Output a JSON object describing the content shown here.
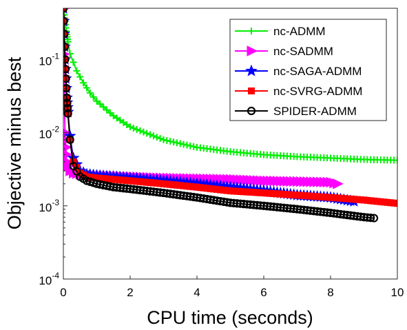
{
  "chart_data": {
    "type": "line",
    "title": "",
    "xlabel": "CPU time (seconds)",
    "ylabel": "Objective minus best",
    "xlim": [
      0,
      10
    ],
    "ylim_log10": [
      -4,
      -0.3
    ],
    "yscale": "log",
    "grid": false,
    "legend_position": "top-right",
    "x_ticks": [
      {
        "value": 0,
        "label": "0"
      },
      {
        "value": 2,
        "label": "2"
      },
      {
        "value": 4,
        "label": "4"
      },
      {
        "value": 6,
        "label": "6"
      },
      {
        "value": 8,
        "label": "8"
      },
      {
        "value": 10,
        "label": "10"
      }
    ],
    "y_ticks": [
      {
        "value": 0.0001,
        "base": "10",
        "exp": "-4"
      },
      {
        "value": 0.001,
        "base": "10",
        "exp": "-3"
      },
      {
        "value": 0.01,
        "base": "10",
        "exp": "-2"
      },
      {
        "value": 0.1,
        "base": "10",
        "exp": "-1"
      }
    ],
    "series": [
      {
        "name": "nc-ADMM",
        "color": "#00ee00",
        "marker": "plus",
        "x": [
          0.0,
          0.1,
          0.2,
          0.4,
          0.6,
          0.8,
          1.0,
          1.5,
          2.0,
          3.0,
          4.0,
          5.0,
          6.0,
          7.0,
          8.0,
          9.0,
          10.0
        ],
        "y": [
          0.5,
          0.22,
          0.12,
          0.07,
          0.048,
          0.035,
          0.027,
          0.017,
          0.012,
          0.008,
          0.0063,
          0.0055,
          0.005,
          0.0047,
          0.0045,
          0.0043,
          0.0042
        ]
      },
      {
        "name": "nc-SADMM",
        "color": "#ff00ff",
        "marker": "triangle-right",
        "x": [
          0.0,
          0.02,
          0.05,
          0.1,
          0.15,
          0.2,
          0.3,
          0.5,
          1.0,
          2.0,
          3.0,
          4.0,
          5.0,
          6.0,
          7.0,
          8.0,
          8.2
        ],
        "y": [
          0.5,
          0.05,
          0.01,
          0.004,
          0.0033,
          0.003,
          0.0028,
          0.0027,
          0.0026,
          0.0025,
          0.0024,
          0.00235,
          0.0023,
          0.0022,
          0.00215,
          0.0021,
          0.002
        ]
      },
      {
        "name": "nc-SAGA-ADMM",
        "color": "#0000ff",
        "marker": "star",
        "x": [
          0.0,
          0.05,
          0.1,
          0.2,
          0.3,
          0.5,
          0.7,
          1.0,
          1.5,
          2.0,
          3.0,
          4.0,
          5.0,
          6.0,
          7.0,
          8.0,
          8.7
        ],
        "y": [
          0.5,
          0.1,
          0.03,
          0.009,
          0.0045,
          0.003,
          0.0027,
          0.0026,
          0.0025,
          0.0024,
          0.0022,
          0.002,
          0.0018,
          0.0016,
          0.0014,
          0.0013,
          0.00115
        ]
      },
      {
        "name": "nc-SVRG-ADMM",
        "color": "#ff0000",
        "marker": "square",
        "x": [
          0.0,
          0.05,
          0.1,
          0.2,
          0.3,
          0.5,
          0.7,
          1.0,
          1.5,
          2.0,
          3.0,
          4.0,
          5.0,
          6.0,
          7.0,
          8.0,
          9.0,
          10.0
        ],
        "y": [
          0.5,
          0.1,
          0.03,
          0.008,
          0.004,
          0.0028,
          0.0025,
          0.0024,
          0.0023,
          0.0022,
          0.002,
          0.0018,
          0.0016,
          0.0015,
          0.0014,
          0.0013,
          0.0012,
          0.00108
        ]
      },
      {
        "name": "SPIDER-ADMM",
        "color": "#000000",
        "marker": "circle",
        "x": [
          0.0,
          0.05,
          0.1,
          0.2,
          0.3,
          0.5,
          0.7,
          1.0,
          1.5,
          2.0,
          3.0,
          4.0,
          5.0,
          6.0,
          7.0,
          8.0,
          9.0,
          9.3
        ],
        "y": [
          0.5,
          0.1,
          0.03,
          0.008,
          0.0035,
          0.0025,
          0.0022,
          0.002,
          0.0018,
          0.0017,
          0.0015,
          0.0013,
          0.0011,
          0.001,
          0.0009,
          0.0008,
          0.0007,
          0.00068
        ]
      }
    ]
  }
}
